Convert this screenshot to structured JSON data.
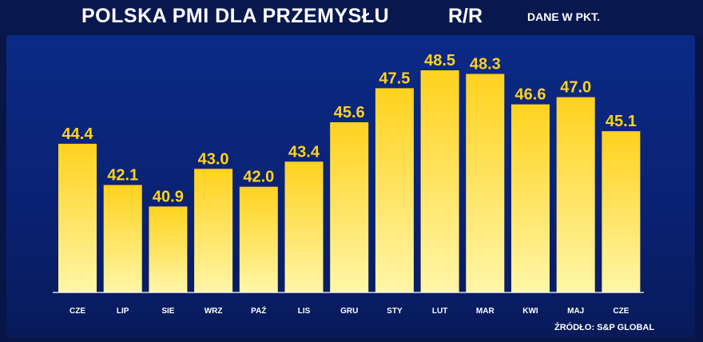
{
  "header": {
    "title": "POLSKA PMI DLA PRZEMYSŁU",
    "subtitle": "R/R",
    "unit": "DANE W PKT."
  },
  "footer": {
    "source": "ŹRÓDŁO: S&P GLOBAL"
  },
  "colors": {
    "bar_top": "#ffd21e",
    "bar_bottom": "#fff6a8",
    "value_label": "#ffd21e",
    "tick_label": "#ffffff",
    "baseline": "#ffffff"
  },
  "chart_data": {
    "type": "bar",
    "categories": [
      "CZE",
      "LIP",
      "SIE",
      "WRZ",
      "PAŹ",
      "LIS",
      "GRU",
      "STY",
      "LUT",
      "MAR",
      "KWI",
      "MAJ",
      "CZE"
    ],
    "values": [
      44.4,
      42.1,
      40.9,
      43.0,
      42.0,
      43.4,
      45.6,
      47.5,
      48.5,
      48.3,
      46.6,
      47.0,
      45.1
    ],
    "value_labels": [
      "44.4",
      "42.1",
      "40.9",
      "43.0",
      "42.0",
      "43.4",
      "45.6",
      "47.5",
      "48.5",
      "48.3",
      "46.6",
      "47.0",
      "45.1"
    ],
    "title": "POLSKA PMI DLA PRZEMYSŁU",
    "subtitle": "R/R",
    "ylabel": "",
    "xlabel": "",
    "ylim": [
      36.1,
      48.5
    ],
    "grid": false,
    "legend": "none"
  }
}
